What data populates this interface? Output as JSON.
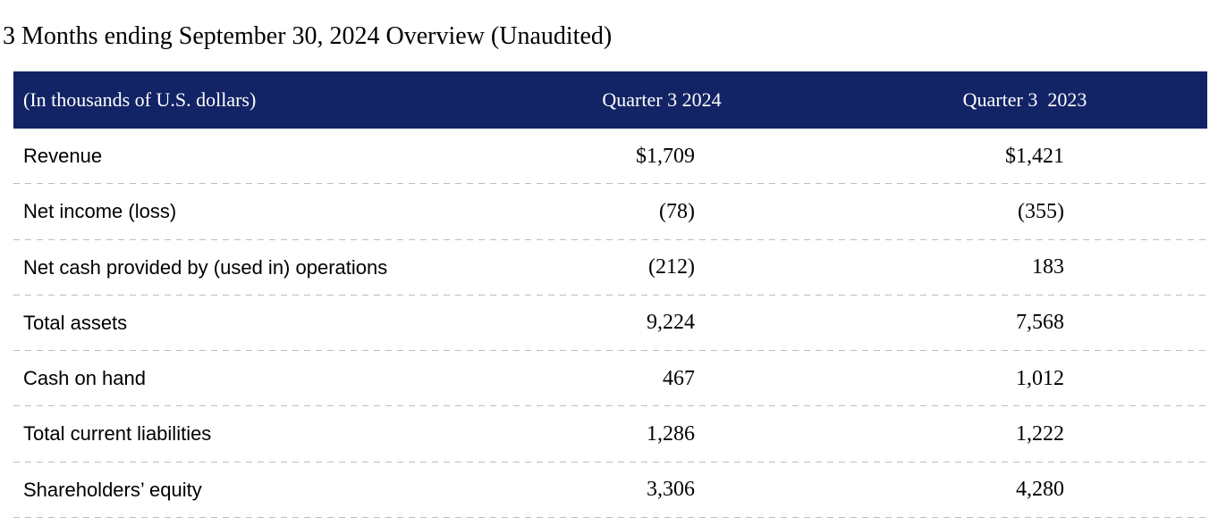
{
  "page": {
    "title": "3 Months ending September 30, 2024 Overview (Unaudited)"
  },
  "table": {
    "unit_note": "(In thousands of U.S. dollars)",
    "columns": [
      "Quarter 3 2024",
      "Quarter 3  2023"
    ],
    "rows": [
      {
        "label": "Revenue",
        "q3_2024": "$1,709",
        "q3_2023": "$1,421"
      },
      {
        "label": "Net income (loss)",
        "q3_2024": "(78)",
        "q3_2023": "(355)"
      },
      {
        "label": "Net cash provided by (used in) operations",
        "q3_2024": "(212)",
        "q3_2023": "183"
      },
      {
        "label": "Total assets",
        "q3_2024": "9,224",
        "q3_2023": "7,568"
      },
      {
        "label": "Cash on hand",
        "q3_2024": "467",
        "q3_2023": "1,012"
      },
      {
        "label": "Total current liabilities",
        "q3_2024": "1,286",
        "q3_2023": "1,222"
      },
      {
        "label": "Shareholders’ equity",
        "q3_2024": "3,306",
        "q3_2023": "4,280"
      }
    ],
    "colors": {
      "header_bg": "#122465",
      "header_text": "#ffffff",
      "divider": "#bdbdbd",
      "body_text": "#000000"
    }
  }
}
